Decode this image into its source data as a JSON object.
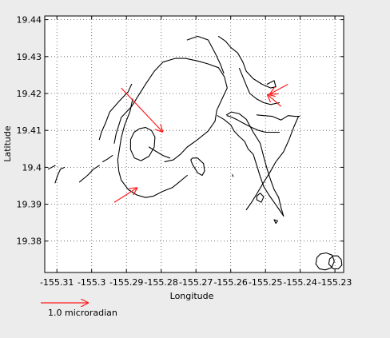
{
  "chart_data": {
    "type": "line",
    "title": "",
    "xlabel": "Longitude",
    "ylabel": "Latitude",
    "xlim": [
      -155.3135,
      -155.2275
    ],
    "ylim": [
      19.3715,
      19.441
    ],
    "grid": true,
    "x_ticks": [
      -155.31,
      -155.3,
      -155.29,
      -155.28,
      -155.27,
      -155.26,
      -155.25,
      -155.24,
      -155.23
    ],
    "x_tick_labels": [
      "-155.31",
      "-155.3",
      "-155.29",
      "-155.28",
      "-155.27",
      "-155.26",
      "-155.25",
      "-155.24",
      "-155.23"
    ],
    "y_ticks": [
      19.38,
      19.39,
      19.4,
      19.41,
      19.42,
      19.43,
      19.44
    ],
    "y_tick_labels": [
      "19.38",
      "19.39",
      "19.4",
      "19.41",
      "19.42",
      "19.43",
      "19.44"
    ],
    "features": [
      {
        "closed": false,
        "points": [
          [
            -155.2935,
            19.4065
          ],
          [
            -155.293,
            19.409
          ],
          [
            -155.2915,
            19.4135
          ],
          [
            -155.2885,
            19.4165
          ],
          [
            -155.2865,
            19.4195
          ],
          [
            -155.2845,
            19.4225
          ],
          [
            -155.282,
            19.426
          ],
          [
            -155.2795,
            19.4285
          ],
          [
            -155.276,
            19.4295
          ],
          [
            -155.273,
            19.4295
          ],
          [
            -155.2695,
            19.4288
          ],
          [
            -155.2665,
            19.428
          ],
          [
            -155.2635,
            19.427
          ],
          [
            -155.2618,
            19.4245
          ],
          [
            -155.261,
            19.4215
          ],
          [
            -155.2625,
            19.4185
          ],
          [
            -155.264,
            19.4155
          ],
          [
            -155.2645,
            19.4125
          ],
          [
            -155.2665,
            19.4098
          ],
          [
            -155.2695,
            19.4075
          ],
          [
            -155.2725,
            19.4055
          ],
          [
            -155.2745,
            19.4035
          ],
          [
            -155.2765,
            19.402
          ],
          [
            -155.279,
            19.4015
          ]
        ]
      },
      {
        "closed": false,
        "points": [
          [
            -155.2882,
            19.4185
          ],
          [
            -155.289,
            19.415
          ],
          [
            -155.2905,
            19.4115
          ],
          [
            -155.2915,
            19.408
          ],
          [
            -155.292,
            19.405
          ],
          [
            -155.2925,
            19.402
          ],
          [
            -155.2922,
            19.399
          ],
          [
            -155.2915,
            19.3965
          ],
          [
            -155.2895,
            19.394
          ],
          [
            -155.287,
            19.3925
          ],
          [
            -155.2845,
            19.3918
          ],
          [
            -155.2822,
            19.3922
          ],
          [
            -155.2795,
            19.3935
          ],
          [
            -155.2768,
            19.3945
          ],
          [
            -155.2748,
            19.396
          ],
          [
            -155.2725,
            19.3978
          ]
        ]
      },
      {
        "closed": true,
        "points": [
          [
            -155.2888,
            19.4075
          ],
          [
            -155.2878,
            19.4095
          ],
          [
            -155.2862,
            19.4105
          ],
          [
            -155.2845,
            19.4108
          ],
          [
            -155.2828,
            19.41
          ],
          [
            -155.2818,
            19.4082
          ],
          [
            -155.282,
            19.4055
          ],
          [
            -155.2835,
            19.403
          ],
          [
            -155.2858,
            19.4018
          ],
          [
            -155.2877,
            19.4025
          ],
          [
            -155.2888,
            19.4048
          ]
        ]
      },
      {
        "closed": false,
        "points": [
          [
            -155.2978,
            19.4075
          ],
          [
            -155.2972,
            19.4095
          ],
          [
            -155.296,
            19.412
          ],
          [
            -155.2948,
            19.415
          ],
          [
            -155.292,
            19.418
          ],
          [
            -155.2895,
            19.4205
          ],
          [
            -155.2885,
            19.4225
          ]
        ]
      },
      {
        "closed": false,
        "points": [
          [
            -155.2725,
            19.4345
          ],
          [
            -155.2695,
            19.4355
          ],
          [
            -155.2665,
            19.4345
          ],
          [
            -155.2645,
            19.431
          ],
          [
            -155.263,
            19.428
          ],
          [
            -155.262,
            19.4255
          ]
        ]
      },
      {
        "closed": false,
        "points": [
          [
            -155.2638,
            19.414
          ],
          [
            -155.262,
            19.413
          ],
          [
            -155.26,
            19.4115
          ],
          [
            -155.259,
            19.4098
          ],
          [
            -155.2577,
            19.4085
          ],
          [
            -155.256,
            19.407
          ],
          [
            -155.255,
            19.405
          ],
          [
            -155.2535,
            19.4035
          ],
          [
            -155.2525,
            19.4005
          ],
          [
            -155.2515,
            19.3975
          ],
          [
            -155.2505,
            19.3948
          ],
          [
            -155.249,
            19.3925
          ],
          [
            -155.2475,
            19.3905
          ],
          [
            -155.246,
            19.3885
          ],
          [
            -155.2448,
            19.3868
          ]
        ]
      },
      {
        "closed": false,
        "points": [
          [
            -155.2448,
            19.3868
          ],
          [
            -155.2455,
            19.389
          ],
          [
            -155.2462,
            19.3918
          ],
          [
            -155.2475,
            19.394
          ],
          [
            -155.2485,
            19.3965
          ],
          [
            -155.2495,
            19.3995
          ],
          [
            -155.2505,
            19.4028
          ],
          [
            -155.2515,
            19.4065
          ],
          [
            -155.2535,
            19.4095
          ],
          [
            -155.2555,
            19.413
          ],
          [
            -155.2575,
            19.4145
          ],
          [
            -155.2598,
            19.415
          ],
          [
            -155.2612,
            19.4142
          ]
        ]
      },
      {
        "closed": false,
        "points": [
          [
            -155.261,
            19.414
          ],
          [
            -155.2595,
            19.4135
          ],
          [
            -155.258,
            19.4128
          ],
          [
            -155.2565,
            19.412
          ],
          [
            -155.254,
            19.4108
          ],
          [
            -155.252,
            19.41
          ],
          [
            -155.25,
            19.4095
          ],
          [
            -155.2478,
            19.4095
          ],
          [
            -155.246,
            19.4095
          ]
        ]
      },
      {
        "closed": false,
        "points": [
          [
            -155.2405,
            19.4138
          ],
          [
            -155.2418,
            19.411
          ],
          [
            -155.2432,
            19.4075
          ],
          [
            -155.2448,
            19.4042
          ],
          [
            -155.247,
            19.4015
          ],
          [
            -155.2488,
            19.3985
          ],
          [
            -155.2508,
            19.3955
          ],
          [
            -155.2525,
            19.3928
          ],
          [
            -155.254,
            19.3905
          ],
          [
            -155.2555,
            19.3885
          ]
        ]
      },
      {
        "closed": false,
        "points": [
          [
            -155.2525,
            19.4142
          ],
          [
            -155.2505,
            19.414
          ],
          [
            -155.248,
            19.4138
          ],
          [
            -155.2455,
            19.4128
          ],
          [
            -155.2435,
            19.414
          ],
          [
            -155.2415,
            19.4138
          ],
          [
            -155.2402,
            19.4138
          ]
        ]
      },
      {
        "closed": false,
        "points": [
          [
            -155.2635,
            19.4355
          ],
          [
            -155.2615,
            19.4342
          ],
          [
            -155.26,
            19.4325
          ],
          [
            -155.258,
            19.431
          ],
          [
            -155.2565,
            19.4285
          ],
          [
            -155.2555,
            19.426
          ],
          [
            -155.2535,
            19.424
          ],
          [
            -155.251,
            19.4225
          ],
          [
            -155.2485,
            19.4215
          ],
          [
            -155.247,
            19.4218
          ],
          [
            -155.2475,
            19.4235
          ],
          [
            -155.2495,
            19.4225
          ]
        ]
      },
      {
        "closed": false,
        "points": [
          [
            -155.2575,
            19.4268
          ],
          [
            -155.2565,
            19.4245
          ],
          [
            -155.2555,
            19.4222
          ],
          [
            -155.2545,
            19.42
          ],
          [
            -155.2525,
            19.4185
          ],
          [
            -155.2505,
            19.4175
          ],
          [
            -155.2485,
            19.417
          ],
          [
            -155.246,
            19.4175
          ]
        ]
      },
      {
        "closed": true,
        "points": [
          [
            -155.2715,
            19.402
          ],
          [
            -155.271,
            19.4008
          ],
          [
            -155.2695,
            19.3985
          ],
          [
            -155.2682,
            19.3978
          ],
          [
            -155.2675,
            19.399
          ],
          [
            -155.2678,
            19.401
          ],
          [
            -155.2695,
            19.4025
          ],
          [
            -155.271,
            19.4025
          ]
        ]
      },
      {
        "closed": true,
        "points": [
          [
            -155.2525,
            19.3912
          ],
          [
            -155.2512,
            19.3905
          ],
          [
            -155.2505,
            19.392
          ],
          [
            -155.2515,
            19.393
          ],
          [
            -155.2525,
            19.3922
          ]
        ]
      },
      {
        "closed": false,
        "points": [
          [
            -155.2475,
            19.3858
          ],
          [
            -155.2465,
            19.3855
          ],
          [
            -155.247,
            19.3848
          ],
          [
            -155.2475,
            19.3858
          ]
        ]
      },
      {
        "closed": false,
        "points": [
          [
            -155.2595,
            19.398
          ],
          [
            -155.2593,
            19.3975
          ]
        ]
      },
      {
        "closed": false,
        "points": [
          [
            -155.2835,
            19.4055
          ],
          [
            -155.2818,
            19.4045
          ],
          [
            -155.2795,
            19.4032
          ],
          [
            -155.2775,
            19.4025
          ]
        ]
      },
      {
        "closed": false,
        "points": [
          [
            -155.3035,
            19.396
          ],
          [
            -155.3012,
            19.3978
          ],
          [
            -155.2995,
            19.3995
          ],
          [
            -155.2978,
            19.4005
          ]
        ]
      },
      {
        "closed": false,
        "points": [
          [
            -155.2968,
            19.4015
          ],
          [
            -155.2955,
            19.4022
          ],
          [
            -155.294,
            19.4032
          ]
        ]
      },
      {
        "closed": false,
        "points": [
          [
            -155.3105,
            19.3958
          ],
          [
            -155.3098,
            19.3978
          ],
          [
            -155.309,
            19.3995
          ],
          [
            -155.3078,
            19.4
          ]
        ]
      },
      {
        "closed": false,
        "points": [
          [
            -155.3125,
            19.3995
          ],
          [
            -155.3105,
            19.4005
          ]
        ]
      },
      {
        "closed": true,
        "points": [
          [
            -155.2355,
            19.3738
          ],
          [
            -155.2352,
            19.3755
          ],
          [
            -155.2342,
            19.3765
          ],
          [
            -155.2325,
            19.3768
          ],
          [
            -155.2308,
            19.3762
          ],
          [
            -155.2302,
            19.3745
          ],
          [
            -155.231,
            19.3728
          ],
          [
            -155.2328,
            19.3722
          ],
          [
            -155.2345,
            19.3725
          ]
        ]
      },
      {
        "closed": true,
        "points": [
          [
            -155.2318,
            19.3738
          ],
          [
            -155.2315,
            19.3752
          ],
          [
            -155.2305,
            19.376
          ],
          [
            -155.2292,
            19.376
          ],
          [
            -155.2282,
            19.375
          ],
          [
            -155.228,
            19.3735
          ],
          [
            -155.229,
            19.3725
          ],
          [
            -155.2305,
            19.3725
          ]
        ]
      }
    ],
    "vectors": [
      {
        "start": [
          -155.2915,
          19.4215
        ],
        "end": [
          -155.2795,
          19.4095
        ]
      },
      {
        "start": [
          -155.2935,
          19.3905
        ],
        "end": [
          -155.2868,
          19.3945
        ]
      },
      {
        "start": [
          -155.2455,
          19.4165
        ],
        "end": [
          -155.2495,
          19.4198
        ]
      },
      {
        "start": [
          -155.2435,
          19.4225
        ],
        "end": [
          -155.2488,
          19.4198
        ]
      }
    ],
    "scale_vector": {
      "label": "1.0 microradian"
    }
  }
}
